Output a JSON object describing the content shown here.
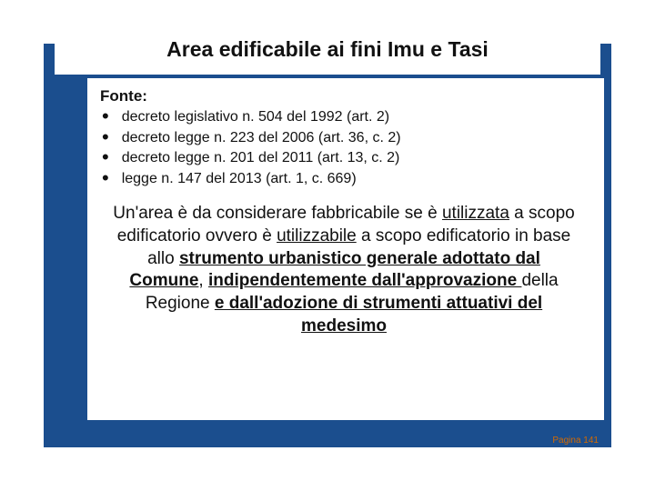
{
  "colors": {
    "frame": "#1b4e8e",
    "background": "#ffffff",
    "text": "#111111",
    "page_num": "#d46a00"
  },
  "typography": {
    "family": "Arial",
    "title_size_pt": 17,
    "bullet_size_pt": 12,
    "body_size_pt": 14
  },
  "title": "Area edificabile ai fini Imu e Tasi",
  "source": {
    "label": "Fonte:",
    "items": [
      "decreto legislativo n. 504 del 1992 (art. 2)",
      "decreto legge n. 223 del 2006 (art. 36, c. 2)",
      "decreto legge n. 201 del 2011 (art. 13, c. 2)",
      "legge n. 147 del 2013 (art. 1, c. 669)"
    ]
  },
  "body": {
    "seg1_nw": "Un'area è da considerare fabbricabile se è ",
    "seg2_u": "utilizzata",
    "seg3_nw": " a scopo edificatorio ovvero è ",
    "seg4_u": "utilizzabile",
    "seg5_nw": " a scopo edificatorio in base allo ",
    "seg6_bu": "strumento urbanistico generale adottato dal Comune",
    "seg7_nw": ", ",
    "seg8_bu": "indipendentemente dall'approvazione ",
    "seg9_nw": "della Regione ",
    "seg10_bu": "e dall'adozione di strumenti attuativi del medesimo"
  },
  "page_number": "Pagina 141"
}
